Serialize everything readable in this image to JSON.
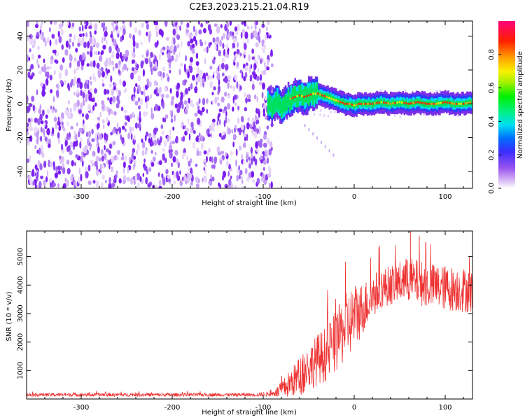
{
  "figure_title": "C2E3.2023.215.21.04.R19",
  "chart_data": [
    {
      "type": "heatmap",
      "title": "C2E3.2023.215.21.04.R19",
      "xlabel": "Height of straight line (km)",
      "ylabel": "Frequency (Hz)",
      "xlim": [
        -360,
        130
      ],
      "ylim": [
        -50,
        49
      ],
      "xticks": [
        -300,
        -200,
        -100,
        0,
        100
      ],
      "xtick_labels": [
        "-300",
        "-200",
        "-100",
        "0",
        "100"
      ],
      "yticks": [
        -40,
        -20,
        0,
        20,
        40
      ],
      "ytick_labels": [
        "-40",
        "-20",
        "0",
        "20",
        "40"
      ],
      "noise_region_x": [
        -360,
        -90
      ],
      "signal_track": {
        "x": [
          -95,
          -90,
          -85,
          -80,
          -75,
          -70,
          -65,
          -60,
          -55,
          -50,
          -45,
          -40,
          -35,
          -30,
          -25,
          -20,
          -15,
          -10,
          -5,
          0,
          5,
          10,
          20,
          30,
          40,
          50,
          60,
          70,
          80,
          90,
          100,
          110,
          120,
          130
        ],
        "freq": [
          0,
          -2,
          2,
          -3,
          1,
          3,
          4,
          5,
          4,
          5,
          6,
          6,
          5,
          4,
          3,
          2,
          1,
          0,
          0,
          -1,
          0,
          0,
          0,
          1,
          0,
          1,
          0,
          1,
          0,
          0,
          1,
          0,
          0,
          1
        ]
      },
      "colorbar": {
        "label": "Normalized spectral amplitude",
        "range": [
          0,
          1
        ],
        "ticks": [
          0.0,
          0.2,
          0.4,
          0.6,
          0.8
        ],
        "tick_labels": [
          "0.0",
          "0.2",
          "0.4",
          "0.6",
          "0.8"
        ]
      }
    },
    {
      "type": "line",
      "series": [
        {
          "name": "SNR",
          "color": "#ee3333"
        }
      ],
      "xlabel": "Height of straight line (km)",
      "ylabel": "SNR (10 * v/v)",
      "xlim": [
        -360,
        130
      ],
      "ylim": [
        0,
        5900
      ],
      "xticks": [
        -300,
        -200,
        -100,
        0,
        100
      ],
      "xtick_labels": [
        "-300",
        "-200",
        "-100",
        "0",
        "100"
      ],
      "yticks": [
        1000,
        2000,
        3000,
        4000,
        5000
      ],
      "ytick_labels": [
        "1000",
        "2000",
        "3000",
        "4000",
        "5000"
      ],
      "envelope": {
        "x": [
          -360,
          -110,
          -90,
          -80,
          -70,
          -60,
          -50,
          -40,
          -30,
          -20,
          -10,
          0,
          10,
          20,
          30,
          40,
          60,
          80,
          100,
          130
        ],
        "mean": [
          150,
          150,
          180,
          300,
          550,
          800,
          1100,
          1400,
          1600,
          2000,
          2500,
          2900,
          3200,
          3600,
          3900,
          4000,
          4200,
          4000,
          3900,
          3800
        ],
        "spread": [
          60,
          60,
          80,
          300,
          500,
          700,
          800,
          900,
          1000,
          1100,
          1200,
          1200,
          900,
          800,
          700,
          700,
          800,
          800,
          800,
          800
        ]
      },
      "peak": {
        "x": 62,
        "y": 5900
      }
    }
  ],
  "colors": {
    "red": "#ee3333",
    "axis": "#000000"
  }
}
